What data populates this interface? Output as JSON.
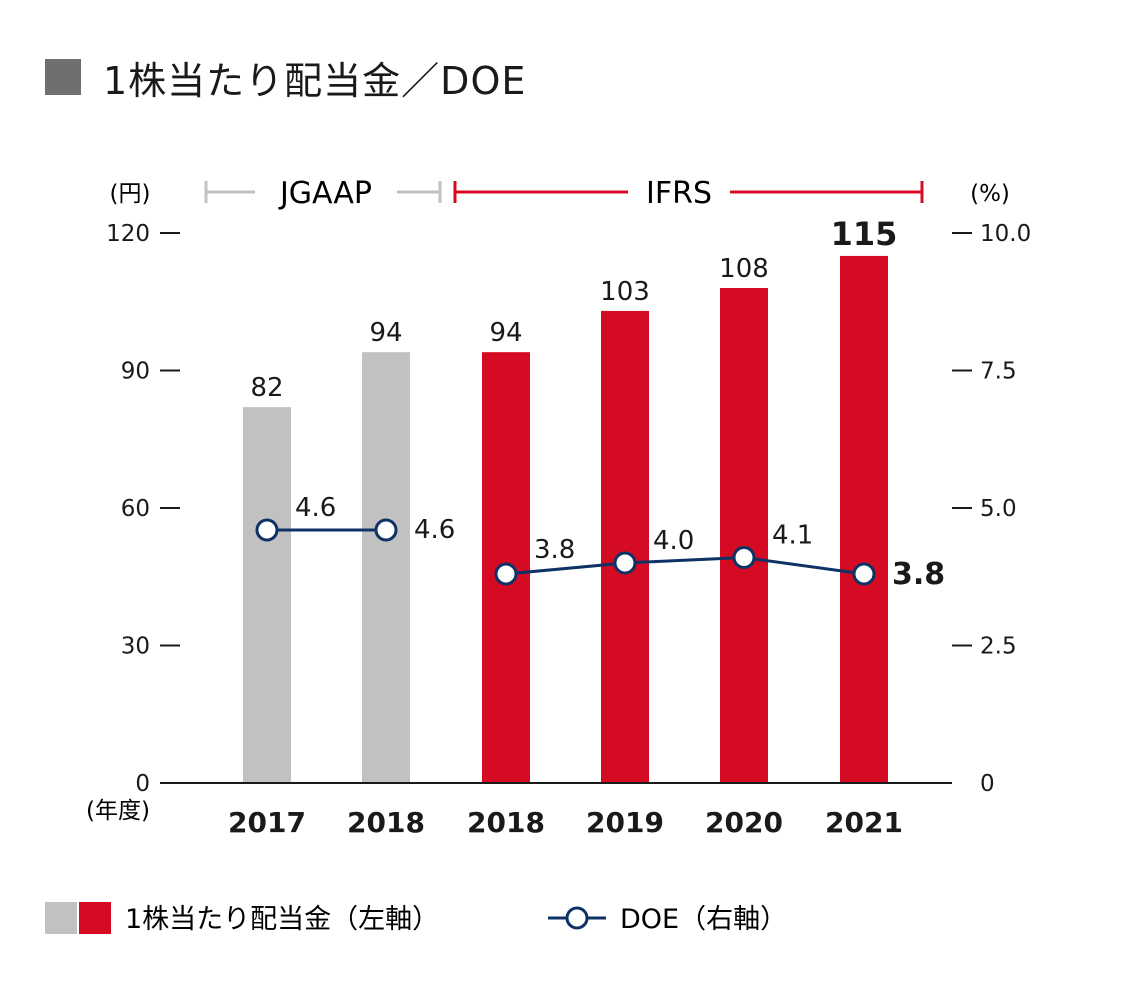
{
  "title": "1株当たり配当金／DOE",
  "chart_data": {
    "type": "bar",
    "title": "1株当たり配当金／DOE",
    "categories": [
      "2017",
      "2018",
      "2018",
      "2019",
      "2020",
      "2021"
    ],
    "standards": [
      "JGAAP",
      "JGAAP",
      "IFRS",
      "IFRS",
      "IFRS",
      "IFRS"
    ],
    "standard_labels": {
      "jgaap": "JGAAP",
      "ifrs": "IFRS"
    },
    "series": [
      {
        "name": "1株当たり配当金（左軸）",
        "type": "bar",
        "axis": "left",
        "values": [
          82,
          94,
          94,
          103,
          108,
          115
        ],
        "labels": [
          "82",
          "94",
          "94",
          "103",
          "108",
          "115"
        ]
      },
      {
        "name": "DOE（右軸）",
        "type": "line",
        "axis": "right",
        "values": [
          4.6,
          4.6,
          3.8,
          4.0,
          4.1,
          3.8
        ],
        "labels": [
          "4.6",
          "4.6",
          "3.8",
          "4.0",
          "4.1",
          "3.8"
        ]
      }
    ],
    "left_axis": {
      "unit": "(円)",
      "ylim": [
        0,
        120
      ],
      "ticks": [
        "0",
        "30",
        "60",
        "90",
        "120"
      ]
    },
    "right_axis": {
      "unit": "(%)",
      "ylim": [
        0,
        10
      ],
      "ticks": [
        "0",
        "2.5",
        "5.0",
        "7.5",
        "10.0"
      ]
    },
    "xlabel": "(年度)",
    "legend": {
      "bar_label": "1株当たり配当金（左軸）",
      "line_label": "DOE（右軸）",
      "placement": "bottom"
    },
    "colors": {
      "jgaap": "#c0c1c0",
      "ifrs": "#d50b24",
      "line": "#0e3266",
      "title_square": "#6f6f6f",
      "axis": "#1a1a1a"
    }
  }
}
